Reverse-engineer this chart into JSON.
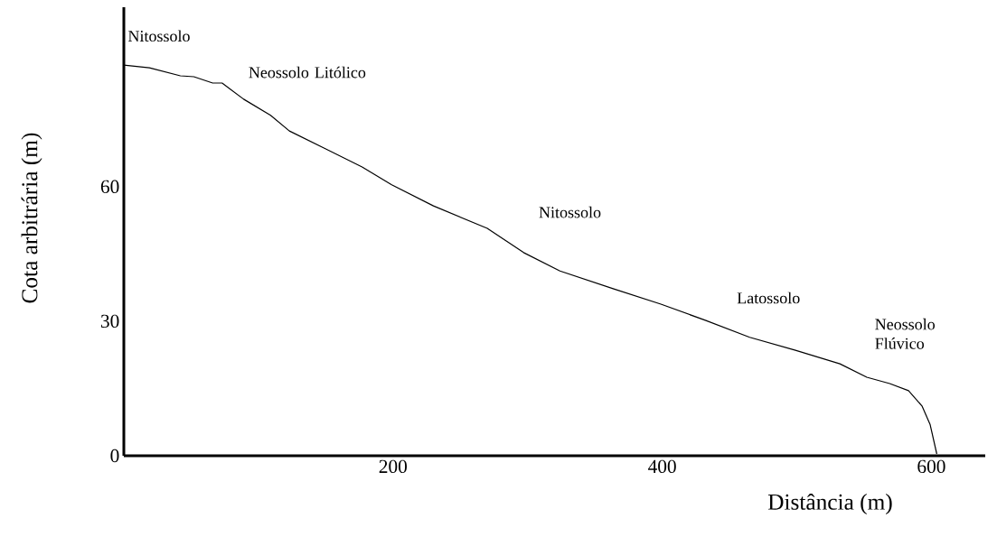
{
  "chart_data": {
    "type": "line",
    "xlabel": "Distância (m)",
    "ylabel": "Cota arbitrária (m)",
    "x": [
      0,
      19,
      42,
      52,
      66,
      73,
      89,
      109,
      123,
      150,
      177,
      199,
      230,
      270,
      297,
      324,
      364,
      399,
      432,
      465,
      499,
      532,
      552,
      569,
      583,
      593,
      599,
      604
    ],
    "series": [
      {
        "color": "#000000",
        "values": [
          87.1,
          86.5,
          84.7,
          84.5,
          83.1,
          83.1,
          79.5,
          75.9,
          72.4,
          68.4,
          64.4,
          60.4,
          55.7,
          50.7,
          45.3,
          41.2,
          37.2,
          33.8,
          30.2,
          26.4,
          23.5,
          20.5,
          17.5,
          16.1,
          14.5,
          11.1,
          7,
          0.4
        ]
      }
    ],
    "xlim": [
      0,
      640
    ],
    "ylim": [
      0,
      100
    ],
    "xticks": [
      200,
      400,
      600
    ],
    "yticks": [
      0,
      30,
      60
    ],
    "grid": false,
    "marker": "none",
    "line_style": "solid",
    "annotations": [
      "Nitossolo",
      "Neossolo Litólico",
      "Nitossolo",
      "Latossolo",
      "Neossolo Flúvico"
    ]
  }
}
